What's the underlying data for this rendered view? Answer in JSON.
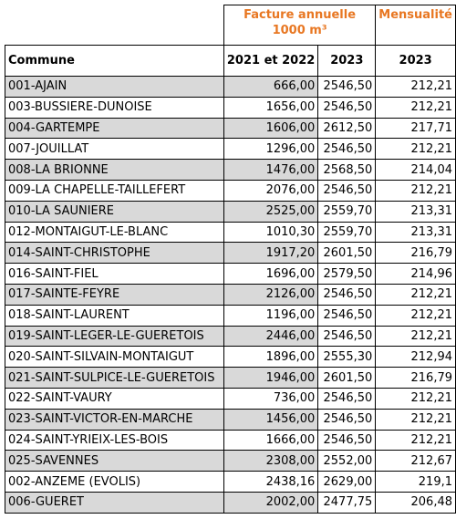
{
  "header": {
    "facture": "Facture annuelle 1000 m³",
    "mensualite": "Mensualité",
    "commune": "Commune",
    "col1": "2021 et 2022",
    "col2": "2023",
    "col3": "2023"
  },
  "table": {
    "rows": [
      [
        "001-AJAIN",
        "666,00",
        "2546,50",
        "212,21"
      ],
      [
        "003-BUSSIERE-DUNOISE",
        "1656,00",
        "2546,50",
        "212,21"
      ],
      [
        "004-GARTEMPE",
        "1606,00",
        "2612,50",
        "217,71"
      ],
      [
        "007-JOUILLAT",
        "1296,00",
        "2546,50",
        "212,21"
      ],
      [
        "008-LA BRIONNE",
        "1476,00",
        "2568,50",
        "214,04"
      ],
      [
        "009-LA CHAPELLE-TAILLEFERT",
        "2076,00",
        "2546,50",
        "212,21"
      ],
      [
        "010-LA SAUNIERE",
        "2525,00",
        "2559,70",
        "213,31"
      ],
      [
        "012-MONTAIGUT-LE-BLANC",
        "1010,30",
        "2559,70",
        "213,31"
      ],
      [
        "014-SAINT-CHRISTOPHE",
        "1917,20",
        "2601,50",
        "216,79"
      ],
      [
        "016-SAINT-FIEL",
        "1696,00",
        "2579,50",
        "214,96"
      ],
      [
        "017-SAINTE-FEYRE",
        "2126,00",
        "2546,50",
        "212,21"
      ],
      [
        "018-SAINT-LAURENT",
        "1196,00",
        "2546,50",
        "212,21"
      ],
      [
        "019-SAINT-LEGER-LE-GUERETOIS",
        "2446,00",
        "2546,50",
        "212,21"
      ],
      [
        "020-SAINT-SILVAIN-MONTAIGUT",
        "1896,00",
        "2555,30",
        "212,94"
      ],
      [
        "021-SAINT-SULPICE-LE-GUERETOIS",
        "1946,00",
        "2601,50",
        "216,79"
      ],
      [
        "022-SAINT-VAURY",
        "736,00",
        "2546,50",
        "212,21"
      ],
      [
        "023-SAINT-VICTOR-EN-MARCHE",
        "1456,00",
        "2546,50",
        "212,21"
      ],
      [
        "024-SAINT-YRIEIX-LES-BOIS",
        "1666,00",
        "2546,50",
        "212,21"
      ],
      [
        "025-SAVENNES",
        "2308,00",
        "2552,00",
        "212,67"
      ],
      [
        "002-ANZEME (EVOLIS)",
        "2438,16",
        "2629,00",
        "219,1"
      ],
      [
        "006-GUERET",
        "2002,00",
        "2477,75",
        "206,48"
      ]
    ]
  }
}
